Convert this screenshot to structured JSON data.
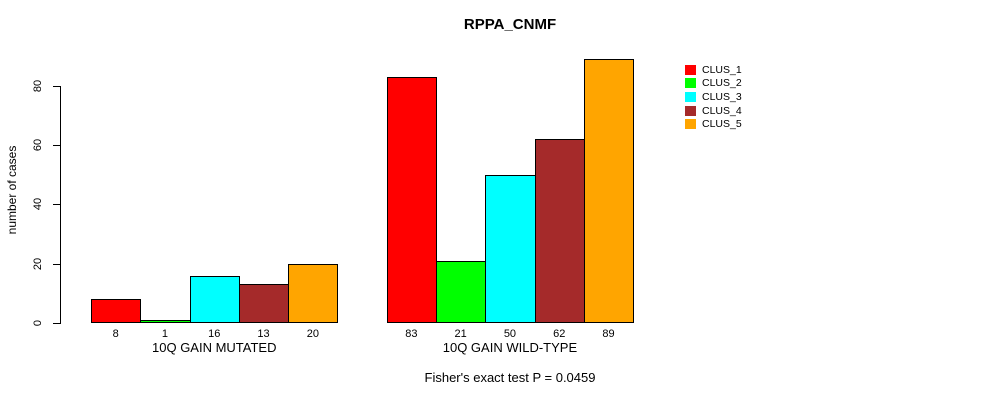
{
  "chart_data": {
    "type": "bar",
    "title": "RPPA_CNMF",
    "ylabel": "number of cases",
    "xlabel": "",
    "yticks": [
      0,
      20,
      40,
      60,
      80
    ],
    "ylim": [
      0,
      89
    ],
    "grid": false,
    "legend_position": "top-right",
    "annotation": "Fisher's exact test P = 0.0459",
    "series": [
      {
        "name": "CLUS_1",
        "color": "#FF0000"
      },
      {
        "name": "CLUS_2",
        "color": "#00FF00"
      },
      {
        "name": "CLUS_3",
        "color": "#00FFFF"
      },
      {
        "name": "CLUS_4",
        "color": "#A52A2A"
      },
      {
        "name": "CLUS_5",
        "color": "#FFA500"
      }
    ],
    "groups": [
      {
        "label": "10Q GAIN MUTATED",
        "values": [
          8,
          1,
          16,
          13,
          20
        ]
      },
      {
        "label": "10Q GAIN WILD-TYPE",
        "values": [
          83,
          21,
          50,
          62,
          89
        ]
      }
    ]
  },
  "colors": {
    "axis": "#000000",
    "text": "#000000",
    "background": "#ffffff"
  }
}
